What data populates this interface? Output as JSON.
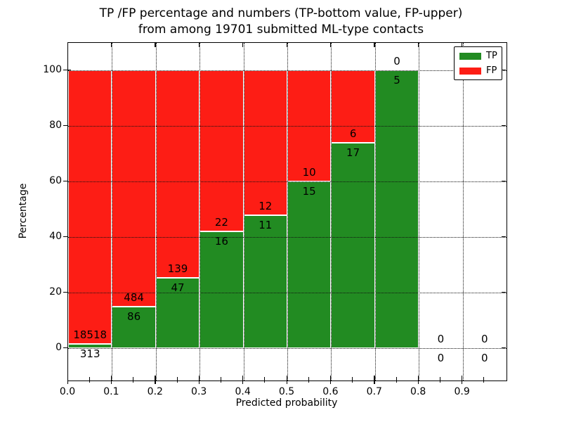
{
  "figure": {
    "title_line1": "TP /FP percentage and numbers (TP-bottom value, FP-upper)",
    "title_line2": "from among 19701 submitted ML-type contacts"
  },
  "chart_data": {
    "type": "bar",
    "stacked": true,
    "normalized_to": 100,
    "title": "TP /FP percentage and numbers (TP-bottom value, FP-upper)\nfrom among 19701 submitted ML-type contacts",
    "xlabel": "Predicted probability",
    "ylabel": "Percentage",
    "total_submitted_contacts": 19701,
    "bin_width": 0.1,
    "bin_starts": [
      0.0,
      0.1,
      0.2,
      0.3,
      0.4,
      0.5,
      0.6,
      0.7,
      0.8,
      0.9
    ],
    "series": [
      {
        "name": "TP",
        "color": "#228b22",
        "counts": [
          313,
          86,
          47,
          16,
          11,
          15,
          17,
          5,
          0,
          0
        ]
      },
      {
        "name": "FP",
        "color": "#fd1d15",
        "counts": [
          18518,
          484,
          139,
          22,
          12,
          10,
          6,
          0,
          0,
          0
        ]
      }
    ],
    "xlim": [
      0.0,
      1.0
    ],
    "ylim": [
      -11.6,
      110
    ],
    "xticks": {
      "major": [
        0.0,
        0.1,
        0.2,
        0.3,
        0.4,
        0.5,
        0.6,
        0.7,
        0.8,
        0.9
      ],
      "labels": [
        "0.0",
        "0.1",
        "0.2",
        "0.3",
        "0.4",
        "0.5",
        "0.6",
        "0.7",
        "0.8",
        "0.9"
      ],
      "minor_step": 0.05
    },
    "yticks": {
      "values": [
        0,
        20,
        40,
        60,
        80,
        100
      ],
      "labels": [
        "0",
        "20",
        "40",
        "60",
        "80",
        "100"
      ]
    },
    "grid": "dotted, drawn above bars",
    "legend": {
      "position": "upper right",
      "entries": [
        {
          "label": "TP",
          "color": "#228b22"
        },
        {
          "label": "FP",
          "color": "#fd1d15"
        }
      ]
    }
  }
}
